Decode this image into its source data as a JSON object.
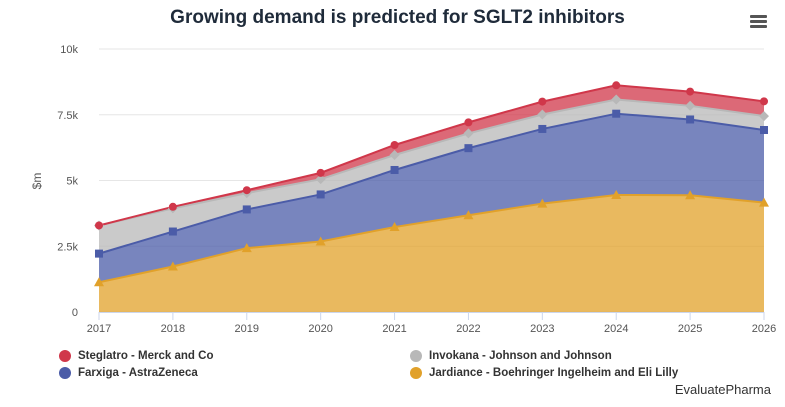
{
  "header": {
    "title": "Growing demand is predicted for SGLT2 inhibitors"
  },
  "menu": {
    "icon": "hamburger-menu-icon"
  },
  "credit": "EvaluatePharma",
  "chart_data": {
    "type": "area",
    "stacked": true,
    "title": "Growing demand is predicted for SGLT2 inhibitors",
    "ylabel": "$m",
    "xlabel": "",
    "x": [
      "2017",
      "2018",
      "2019",
      "2020",
      "2021",
      "2022",
      "2023",
      "2024",
      "2025",
      "2026"
    ],
    "ylim": [
      0,
      10000
    ],
    "yticks": [
      0,
      2500,
      5000,
      7500,
      10000
    ],
    "ytick_labels": [
      "0",
      "2.5k",
      "5k",
      "7.5k",
      "10k"
    ],
    "grid": true,
    "legend_position": "bottom",
    "series": [
      {
        "name": "Jardiance - Boehringer Ingelheim and Eli Lilly",
        "color": "#e1a12a",
        "marker": "triangle",
        "values": [
          1130,
          1730,
          2430,
          2680,
          3230,
          3680,
          4120,
          4450,
          4440,
          4160
        ]
      },
      {
        "name": "Farxiga - AstraZeneca",
        "color": "#4b5ca8",
        "marker": "square",
        "values": [
          1090,
          1330,
          1470,
          1790,
          2170,
          2550,
          2840,
          3090,
          2880,
          2760
        ]
      },
      {
        "name": "Invokana - Johnson and Johnson",
        "color": "#b8b8b8",
        "marker": "diamond",
        "values": [
          1070,
          880,
          620,
          580,
          570,
          560,
          550,
          540,
          520,
          530
        ]
      },
      {
        "name": "Steglatro - Merck and Co",
        "color": "#d0374a",
        "marker": "circle",
        "values": [
          0,
          60,
          110,
          240,
          380,
          420,
          490,
          540,
          540,
          560
        ]
      }
    ],
    "legend": [
      "Steglatro - Merck and Co",
      "Invokana - Johnson and Johnson",
      "Farxiga - AstraZeneca",
      "Jardiance - Boehringer Ingelheim and Eli Lilly"
    ]
  }
}
